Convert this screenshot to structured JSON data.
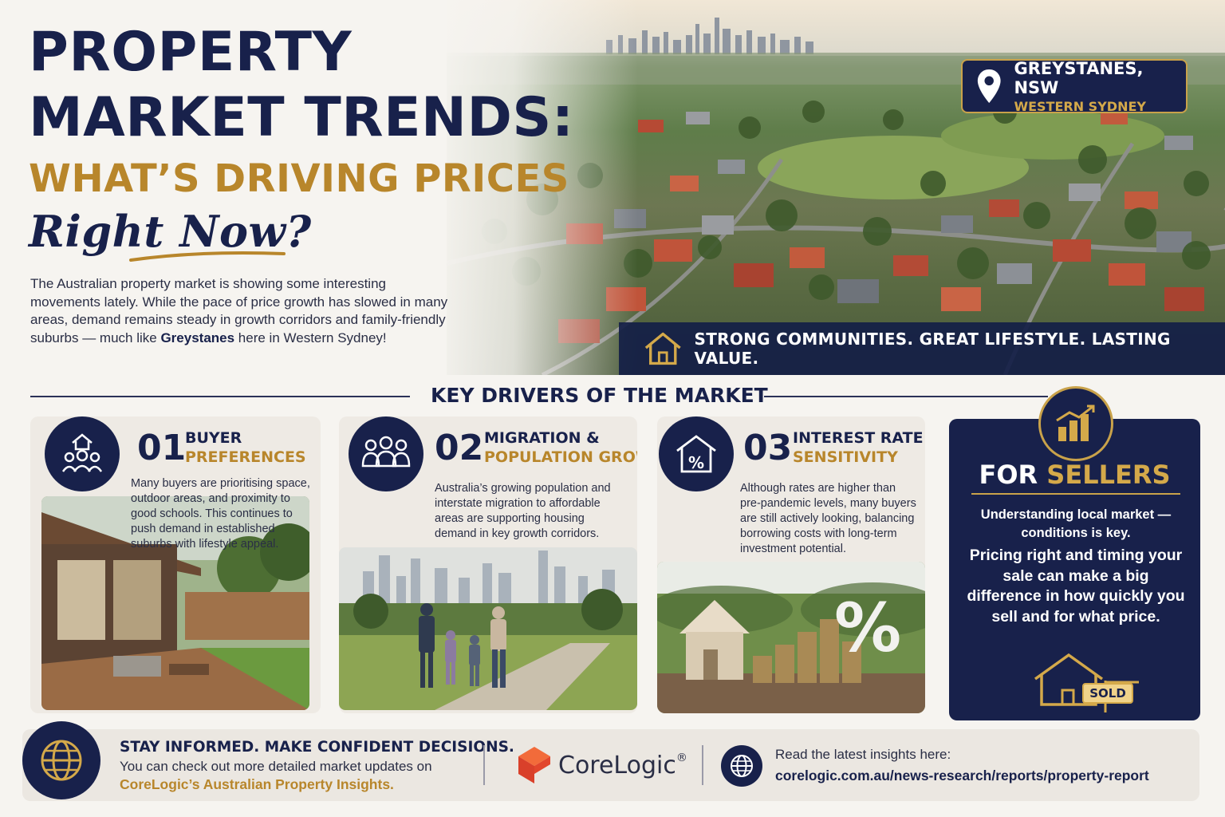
{
  "hero": {
    "title_line1": "PROPERTY",
    "title_line2": "MARKET TRENDS:",
    "title_line3": "WHAT’S DRIVING PRICES",
    "title_line4": "Right Now?",
    "intro_part1": "The Australian property market is showing some interesting movements lately. While the pace of price growth has slowed in many areas, demand remains steady in growth corridors and family-friendly suburbs — much like ",
    "intro_bold": "Greystanes",
    "intro_part2": " here in Western Sydney!",
    "location_name": "GREYSTANES, NSW",
    "location_sub": "WESTERN SYDNEY",
    "tagline": "STRONG COMMUNITIES. GREAT LIFESTYLE. LASTING VALUE."
  },
  "drivers": {
    "heading": "KEY DRIVERS OF THE MARKET",
    "cards": [
      {
        "number": "01",
        "title_line1": "BUYER",
        "title_line2": "PREFERENCES",
        "body": "Many buyers are prioritising space, outdoor areas, and proximity to good schools. This continues to push demand in established suburbs with lifestyle appeal.",
        "icon": "family-house-icon"
      },
      {
        "number": "02",
        "title_line1": "MIGRATION &",
        "title_line2": "POPULATION GROWTH",
        "body": "Australia’s growing population and interstate migration to affordable areas are supporting housing demand in key growth corridors.",
        "icon": "people-group-icon"
      },
      {
        "number": "03",
        "title_line1": "INTEREST RATE",
        "title_line2": "SENSITIVITY",
        "body": "Although rates are higher than pre-pandemic levels, many buyers are still actively looking, balancing borrowing costs with long-term investment potential.",
        "icon": "house-percent-icon"
      }
    ]
  },
  "sellers": {
    "title_white": "FOR",
    "title_gold": "SELLERS",
    "para1": "Understanding local market —conditions is key.",
    "para2": "Pricing right and timing your sale can make a big difference in how quickly you sell and for what price.",
    "sign_text": "SOLD"
  },
  "footer": {
    "heading": "STAY INFORMED. MAKE CONFIDENT DECISIONS.",
    "text": "You can check out more detailed market updates on",
    "link_text": "CoreLogic’s Australian Property Insights.",
    "brand": "CoreLogic",
    "brand_mark": "®",
    "read_label": "Read the latest insights here:",
    "url": "corelogic.com.au/news-research/reports/property-report"
  },
  "colors": {
    "navy": "#18214b",
    "gold": "#b8862b",
    "corelogic_red": "#e2462c"
  }
}
